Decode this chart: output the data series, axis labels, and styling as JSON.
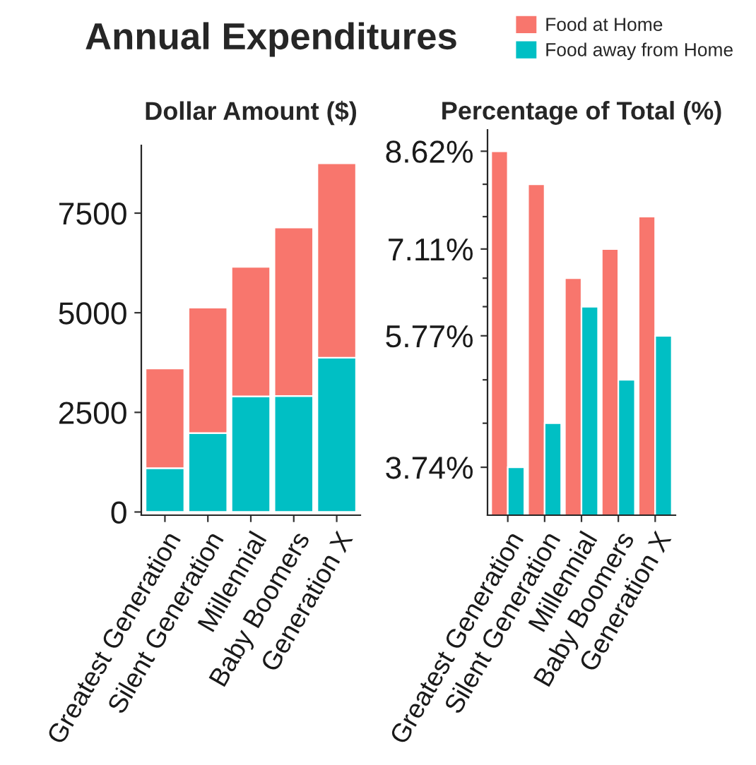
{
  "chart_data": [
    {
      "type": "bar",
      "title": "Dollar Amount ($)",
      "annotations": [
        "Annual Expenditures"
      ],
      "stacked": true,
      "legend": "top right",
      "categories": [
        "Greatest Generation",
        "Silent Generation",
        "Millennial",
        "Baby Boomers",
        "Generation X"
      ],
      "series": [
        {
          "name": "Food away from Home",
          "color": "#00bfc4",
          "values": [
            1100,
            1980,
            2900,
            2910,
            3870
          ]
        },
        {
          "name": "Food at Home",
          "color": "#f8766d",
          "values": [
            2500,
            3150,
            3250,
            4230,
            4880
          ]
        }
      ],
      "ylim": [
        -80,
        9200
      ],
      "yticks": [
        0,
        2500,
        5000,
        7500
      ],
      "grid": false
    },
    {
      "type": "bar",
      "title": "Percentage of Total (%)",
      "categories": [
        "Greatest Generation",
        "Silent Generation",
        "Millennial",
        "Baby Boomers",
        "Generation X"
      ],
      "series": [
        {
          "name": "Food at Home",
          "color": "#f8766d",
          "values": [
            8.62,
            8.11,
            6.66,
            7.11,
            7.61
          ]
        },
        {
          "name": "Food away from Home",
          "color": "#00bfc4",
          "values": [
            3.74,
            4.42,
            6.22,
            5.09,
            5.77
          ]
        }
      ],
      "ylim": [
        3.0,
        8.95
      ],
      "yticks": [
        {
          "value": 3.74,
          "label": "3.74%"
        },
        {
          "value": 4.42,
          "label": null
        },
        {
          "value": 5.09,
          "label": null
        },
        {
          "value": 5.77,
          "label": "5.77%"
        },
        {
          "value": 6.22,
          "label": null
        },
        {
          "value": 6.66,
          "label": null
        },
        {
          "value": 7.11,
          "label": "7.11%"
        },
        {
          "value": 7.61,
          "label": null
        },
        {
          "value": 8.11,
          "label": null
        },
        {
          "value": 8.62,
          "label": "8.62%"
        }
      ],
      "grid": false
    }
  ]
}
